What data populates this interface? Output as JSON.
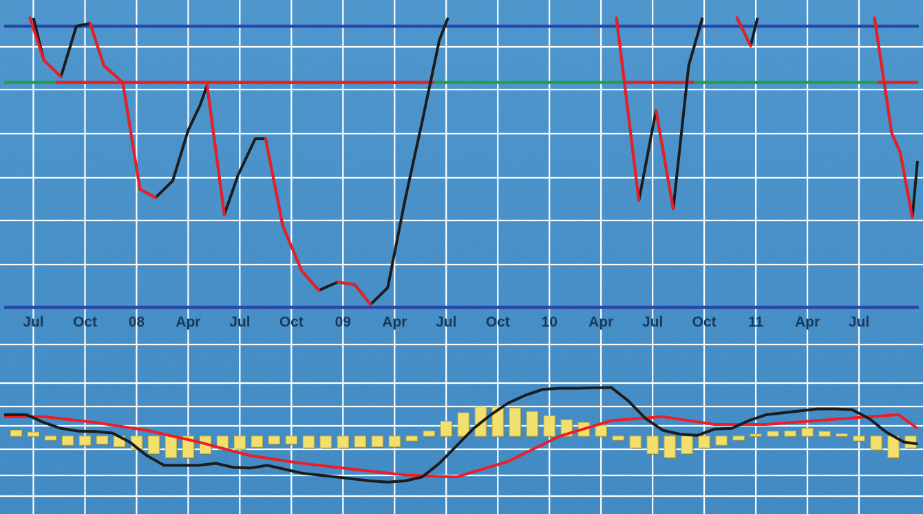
{
  "chart_data": [
    {
      "type": "line",
      "title": "",
      "xlabel": "",
      "ylabel": "",
      "x_tick_labels": [
        "Jul",
        "Oct",
        "08",
        "Apr",
        "Jul",
        "Oct",
        "09",
        "Apr",
        "Jul",
        "Oct",
        "10",
        "Apr",
        "Jul",
        "Oct",
        "11",
        "Apr",
        "Jul"
      ],
      "x_tick_months": [
        6,
        9,
        12,
        15,
        18,
        21,
        24,
        27,
        30,
        33,
        36,
        39,
        42,
        45,
        48,
        51,
        54
      ],
      "xlim": [
        4.3,
        57.4
      ],
      "ylim": [
        -5,
        105
      ],
      "grid": true,
      "reference_lines": [
        {
          "value": 100,
          "color": "#2a46a8"
        },
        {
          "value": 0,
          "color": "#2a46a8"
        },
        {
          "value": 80,
          "color": "#22a04a",
          "segments_red": [
            [
              7.3,
              29.3
            ],
            [
              40.3,
              44.4
            ],
            [
              55.1,
              57.4
            ]
          ]
        }
      ],
      "series": [
        {
          "color": "#1c1c1c",
          "segments": [
            [
              [
                6.0,
                103
              ],
              [
                6.6,
                88
              ],
              [
                7.6,
                82
              ],
              [
                8.5,
                100
              ],
              [
                9.3,
                101
              ],
              [
                10.1,
                86
              ],
              [
                11.2,
                80
              ],
              [
                12.2,
                42
              ],
              [
                13.1,
                39
              ],
              [
                14.1,
                45
              ],
              [
                15.0,
                63
              ],
              [
                15.7,
                72
              ],
              [
                16.1,
                79
              ],
              [
                17.1,
                33
              ],
              [
                17.9,
                47
              ],
              [
                18.9,
                60
              ],
              [
                19.5,
                60
              ],
              [
                20.5,
                29
              ],
              [
                21.6,
                13
              ],
              [
                22.6,
                6
              ],
              [
                23.7,
                9
              ],
              [
                24.7,
                8
              ],
              [
                25.6,
                1
              ],
              [
                26.6,
                7
              ],
              [
                27.6,
                38
              ],
              [
                28.6,
                66
              ],
              [
                29.6,
                95
              ],
              [
                30.1,
                103
              ]
            ],
            [
              [
                39.9,
                103
              ],
              [
                41.2,
                38
              ],
              [
                42.2,
                70
              ],
              [
                43.2,
                35
              ],
              [
                44.1,
                86
              ],
              [
                44.9,
                103
              ]
            ],
            [
              [
                46.9,
                103
              ],
              [
                47.7,
                93
              ],
              [
                48.1,
                103
              ]
            ],
            [
              [
                54.9,
                103
              ],
              [
                55.9,
                62
              ],
              [
                56.4,
                55
              ],
              [
                57.1,
                32
              ],
              [
                57.4,
                52
              ]
            ]
          ]
        },
        {
          "color": "#ee1c25",
          "segments": [
            [
              [
                5.8,
                103
              ],
              [
                6.6,
                88
              ],
              [
                7.6,
                82
              ],
              [
                8.5,
                100
              ],
              [
                9.3,
                101
              ],
              [
                10.1,
                86
              ],
              [
                11.2,
                80
              ],
              [
                12.2,
                42
              ],
              [
                13.1,
                39
              ],
              [
                14.1,
                45
              ],
              [
                15.0,
                63
              ],
              [
                15.7,
                72
              ],
              [
                16.1,
                79
              ],
              [
                17.1,
                33
              ],
              [
                17.9,
                47
              ],
              [
                18.9,
                60
              ],
              [
                19.5,
                60
              ],
              [
                20.5,
                29
              ],
              [
                21.6,
                13
              ],
              [
                22.6,
                6
              ],
              [
                23.7,
                9
              ],
              [
                24.7,
                8
              ],
              [
                25.6,
                1
              ],
              [
                26.6,
                7
              ],
              [
                27.6,
                38
              ],
              [
                28.6,
                66
              ],
              [
                29.6,
                95
              ],
              [
                30.1,
                103
              ]
            ],
            [
              [
                39.9,
                103
              ],
              [
                41.2,
                38
              ],
              [
                42.2,
                70
              ],
              [
                43.2,
                35
              ],
              [
                44.1,
                86
              ],
              [
                44.9,
                103
              ]
            ],
            [
              [
                46.9,
                103
              ],
              [
                47.7,
                93
              ],
              [
                48.1,
                103
              ]
            ],
            [
              [
                54.9,
                103
              ],
              [
                55.9,
                62
              ],
              [
                56.4,
                55
              ],
              [
                57.1,
                32
              ],
              [
                57.4,
                52
              ]
            ]
          ]
        }
      ]
    },
    {
      "type": "bar",
      "title": "",
      "xlabel": "",
      "ylabel": "",
      "xlim": [
        4.3,
        57.4
      ],
      "ylim": [
        -20,
        20
      ],
      "grid": true,
      "histogram": {
        "color": "#f2e06e",
        "months": [
          5,
          6,
          7,
          8,
          9,
          10,
          11,
          12,
          13,
          14,
          15,
          16,
          17,
          18,
          19,
          20,
          21,
          22,
          23,
          24,
          25,
          26,
          27,
          28,
          29,
          30,
          31,
          32,
          33,
          34,
          35,
          36,
          37,
          38,
          39,
          40,
          41,
          42,
          43,
          44,
          45,
          46,
          47,
          48,
          49,
          50,
          51,
          52,
          53,
          54,
          55,
          56,
          57
        ],
        "values": [
          1.5,
          1.0,
          -1.0,
          -2.3,
          -2.3,
          -2.0,
          -2.7,
          -3.3,
          -4.5,
          -5.5,
          -5.5,
          -4.5,
          -3.3,
          -3.3,
          -2.8,
          -2.0,
          -2.0,
          -3.0,
          -3.0,
          -3.0,
          -2.8,
          -2.7,
          -2.7,
          -1.2,
          1.3,
          3.8,
          6.0,
          7.5,
          7.5,
          7.2,
          6.3,
          5.2,
          4.2,
          3.5,
          2.8,
          -1.0,
          -3.0,
          -4.5,
          -5.5,
          -4.5,
          -3.0,
          -2.3,
          -1.0,
          0.5,
          1.2,
          1.3,
          2.0,
          1.2,
          0.6,
          -1.2,
          -3.5,
          -5.5,
          -3.0
        ]
      },
      "series": [
        {
          "color": "#ee1c25",
          "x": [
            4.3,
            6.6,
            9.6,
            12.6,
            15.6,
            18.6,
            21.6,
            24.6,
            27.6,
            30.6,
            33.6,
            36.6,
            39.6,
            42.6,
            45.6,
            48.6,
            51.6,
            54.6,
            56.3,
            57.4
          ],
          "values": [
            5.0,
            5.0,
            3.5,
            1.5,
            -1.5,
            -5.0,
            -7.0,
            -8.5,
            -10.0,
            -10.5,
            -6.5,
            0.0,
            4.0,
            5.0,
            3.0,
            3.0,
            4.0,
            5.0,
            5.5,
            2.0
          ]
        },
        {
          "color": "#1c1c1c",
          "x": [
            4.3,
            5.6,
            6.6,
            7.6,
            8.6,
            9.6,
            10.6,
            11.6,
            12.6,
            13.6,
            14.6,
            15.6,
            16.6,
            17.6,
            18.6,
            19.6,
            20.6,
            21.6,
            22.6,
            23.6,
            24.6,
            25.6,
            26.6,
            27.6,
            28.6,
            29.6,
            30.6,
            31.6,
            32.6,
            33.6,
            34.6,
            35.6,
            36.6,
            37.6,
            38.6,
            39.6,
            40.6,
            41.6,
            42.6,
            43.6,
            44.6,
            45.6,
            46.6,
            47.6,
            48.6,
            49.6,
            50.6,
            51.6,
            52.6,
            53.6,
            54.6,
            55.6,
            56.6,
            57.4
          ],
          "values": [
            5.5,
            5.5,
            3.5,
            2.0,
            1.3,
            1.2,
            0.8,
            -1.5,
            -5.0,
            -7.5,
            -7.5,
            -7.5,
            -7.0,
            -8.0,
            -8.2,
            -7.5,
            -8.5,
            -9.5,
            -10.0,
            -10.5,
            -11.0,
            -11.5,
            -11.8,
            -11.5,
            -10.5,
            -7.0,
            -2.5,
            2.0,
            5.5,
            8.5,
            10.5,
            12.0,
            12.3,
            12.3,
            12.4,
            12.5,
            9.0,
            4.5,
            1.5,
            0.5,
            0.2,
            1.8,
            2.0,
            4.0,
            5.5,
            6.0,
            6.5,
            7.0,
            7.0,
            6.8,
            4.5,
            1.0,
            -1.5,
            -2.0
          ]
        }
      ]
    }
  ]
}
